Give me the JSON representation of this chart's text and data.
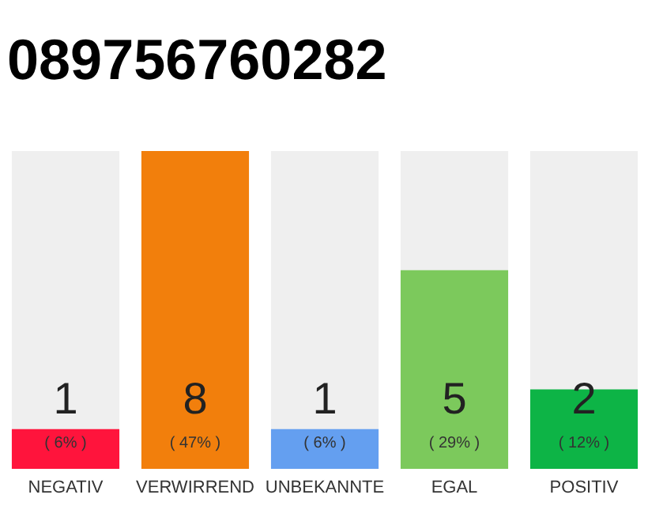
{
  "chart_data": {
    "type": "bar",
    "title": "089756760282",
    "categories": [
      "NEGATIV",
      "VERWIRREND",
      "UNBEKANNTE",
      "EGAL",
      "POSITIV"
    ],
    "values": [
      1,
      8,
      1,
      5,
      2
    ],
    "colors": [
      "#ff143c",
      "#f27f0c",
      "#649ff0",
      "#7cc95c",
      "#0db446"
    ],
    "data_labels": true,
    "annotations": [
      "( 6% )",
      "( 47% )",
      "( 6% )",
      "( 29% )",
      "( 12% )"
    ],
    "grid": false
  }
}
